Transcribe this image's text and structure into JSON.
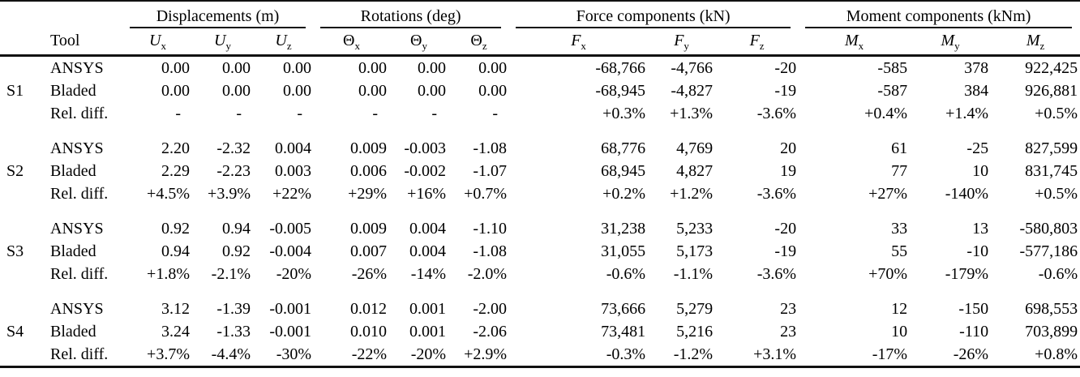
{
  "table": {
    "col_groups": [
      {
        "label": "Displacements (m)"
      },
      {
        "label": "Rotations (deg)"
      },
      {
        "label": "Force components (kN)"
      },
      {
        "label": "Moment components (kNm)"
      }
    ],
    "tool_header": "Tool",
    "sub_headers": [
      {
        "base": "U",
        "sub": "x"
      },
      {
        "base": "U",
        "sub": "y"
      },
      {
        "base": "U",
        "sub": "z"
      },
      {
        "base": "Θ",
        "sub": "x"
      },
      {
        "base": "Θ",
        "sub": "y"
      },
      {
        "base": "Θ",
        "sub": "z"
      },
      {
        "base": "F",
        "sub": "x"
      },
      {
        "base": "F",
        "sub": "y"
      },
      {
        "base": "F",
        "sub": "z"
      },
      {
        "base": "M",
        "sub": "x"
      },
      {
        "base": "M",
        "sub": "y"
      },
      {
        "base": "M",
        "sub": "z"
      }
    ],
    "groups": [
      {
        "station": "S1",
        "rows": [
          {
            "tool": "ANSYS",
            "values": [
              "0.00",
              "0.00",
              "0.00",
              "0.00",
              "0.00",
              "0.00",
              "-68,766",
              "-4,766",
              "-20",
              "-585",
              "378",
              "922,425"
            ]
          },
          {
            "tool": "Bladed",
            "values": [
              "0.00",
              "0.00",
              "0.00",
              "0.00",
              "0.00",
              "0.00",
              "-68,945",
              "-4,827",
              "-19",
              "-587",
              "384",
              "926,881"
            ]
          },
          {
            "tool": "Rel. diff.",
            "values": [
              "-",
              "-",
              "-",
              "-",
              "-",
              "-",
              "+0.3%",
              "+1.3%",
              "-3.6%",
              "+0.4%",
              "+1.4%",
              "+0.5%"
            ]
          }
        ]
      },
      {
        "station": "S2",
        "rows": [
          {
            "tool": "ANSYS",
            "values": [
              "2.20",
              "-2.32",
              "0.004",
              "0.009",
              "-0.003",
              "-1.08",
              "68,776",
              "4,769",
              "20",
              "61",
              "-25",
              "827,599"
            ]
          },
          {
            "tool": "Bladed",
            "values": [
              "2.29",
              "-2.23",
              "0.003",
              "0.006",
              "-0.002",
              "-1.07",
              "68,945",
              "4,827",
              "19",
              "77",
              "10",
              "831,745"
            ]
          },
          {
            "tool": "Rel. diff.",
            "values": [
              "+4.5%",
              "+3.9%",
              "+22%",
              "+29%",
              "+16%",
              "+0.7%",
              "+0.2%",
              "+1.2%",
              "-3.6%",
              "+27%",
              "-140%",
              "+0.5%"
            ]
          }
        ]
      },
      {
        "station": "S3",
        "rows": [
          {
            "tool": "ANSYS",
            "values": [
              "0.92",
              "0.94",
              "-0.005",
              "0.009",
              "0.004",
              "-1.10",
              "31,238",
              "5,233",
              "-20",
              "33",
              "13",
              "-580,803"
            ]
          },
          {
            "tool": "Bladed",
            "values": [
              "0.94",
              "0.92",
              "-0.004",
              "0.007",
              "0.004",
              "-1.08",
              "31,055",
              "5,173",
              "-19",
              "55",
              "-10",
              "-577,186"
            ]
          },
          {
            "tool": "Rel. diff.",
            "values": [
              "+1.8%",
              "-2.1%",
              "-20%",
              "-26%",
              "-14%",
              "-2.0%",
              "-0.6%",
              "-1.1%",
              "-3.6%",
              "+70%",
              "-179%",
              "-0.6%"
            ]
          }
        ]
      },
      {
        "station": "S4",
        "rows": [
          {
            "tool": "ANSYS",
            "values": [
              "3.12",
              "-1.39",
              "-0.001",
              "0.012",
              "0.001",
              "-2.00",
              "73,666",
              "5,279",
              "23",
              "12",
              "-150",
              "698,553"
            ]
          },
          {
            "tool": "Bladed",
            "values": [
              "3.24",
              "-1.33",
              "-0.001",
              "0.010",
              "0.001",
              "-2.06",
              "73,481",
              "5,216",
              "23",
              "10",
              "-110",
              "703,899"
            ]
          },
          {
            "tool": "Rel. diff.",
            "values": [
              "+3.7%",
              "-4.4%",
              "-30%",
              "-22%",
              "-20%",
              "+2.9%",
              "-0.3%",
              "-1.2%",
              "+3.1%",
              "-17%",
              "-26%",
              "+0.8%"
            ]
          }
        ]
      }
    ]
  }
}
